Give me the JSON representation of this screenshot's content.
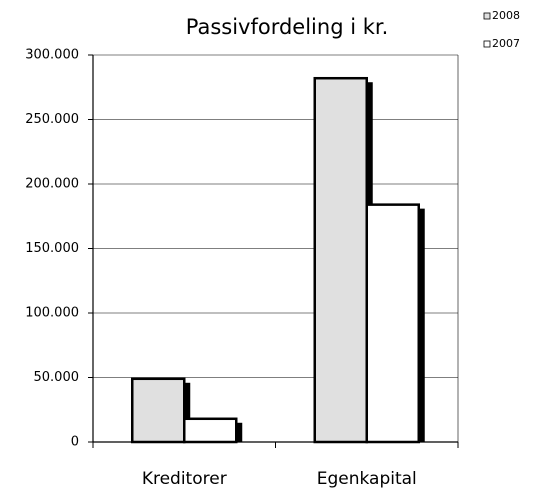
{
  "chart_data": {
    "type": "bar",
    "title": "Passivfordeling i kr.",
    "categories": [
      "Kreditorer",
      "Egenkapital"
    ],
    "series": [
      {
        "name": "2008",
        "color": "#e0e0e0",
        "values": [
          49000,
          282000
        ]
      },
      {
        "name": "2007",
        "color": "#ffffff",
        "values": [
          18000,
          184000
        ]
      }
    ],
    "ylim": [
      0,
      300000
    ],
    "yticks": [
      0,
      {
        "value": 50000,
        "label": "50.000"
      },
      {
        "value": 100000,
        "label": "100.000"
      },
      {
        "value": 150000,
        "label": "150.000"
      },
      {
        "value": 200000,
        "label": "200.000"
      },
      {
        "value": 250000,
        "label": "250.000"
      },
      {
        "value": 300000,
        "label": "300.000"
      }
    ],
    "grid": true
  }
}
